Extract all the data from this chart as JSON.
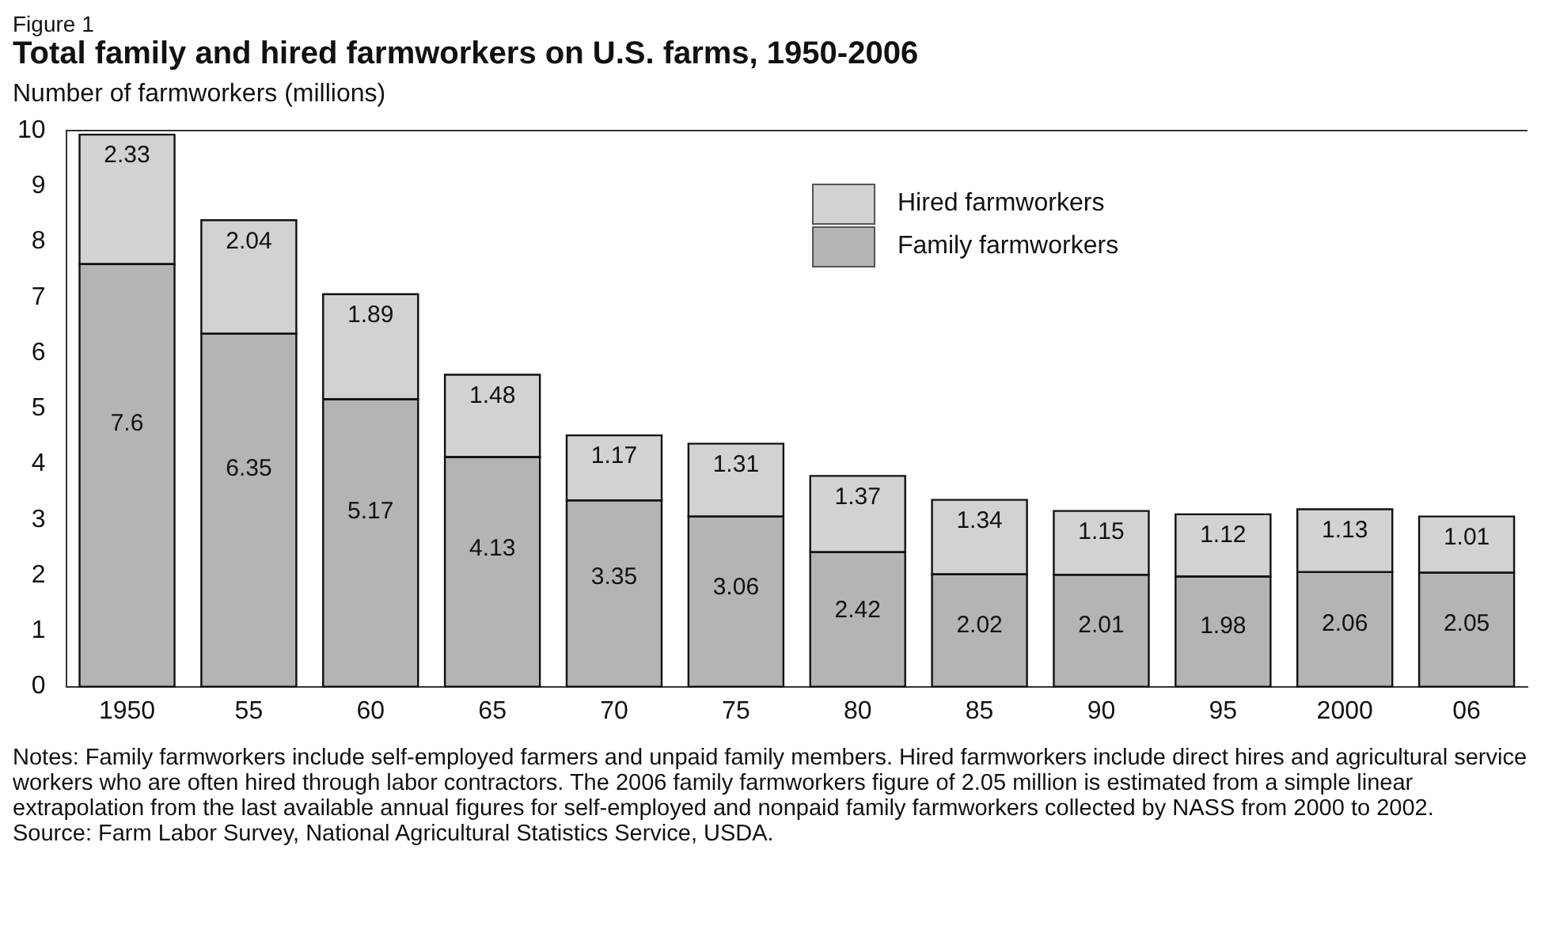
{
  "chart_data": {
    "type": "bar",
    "title": "Total family and hired farmworkers on U.S. farms, 1950-2006",
    "subtitle": "Figure 1",
    "ylabel": "Number of farmworkers (millions)",
    "categories": [
      "1950",
      "55",
      "60",
      "65",
      "70",
      "75",
      "80",
      "85",
      "90",
      "95",
      "2000",
      "06"
    ],
    "series": [
      {
        "name": "Family farmworkers",
        "color": "#b4b4b4",
        "values": [
          7.6,
          6.35,
          5.17,
          4.13,
          3.35,
          3.06,
          2.42,
          2.02,
          2.01,
          1.98,
          2.06,
          2.05
        ]
      },
      {
        "name": "Hired farmworkers",
        "color": "#d2d2d2",
        "values": [
          2.33,
          2.04,
          1.89,
          1.48,
          1.17,
          1.31,
          1.37,
          1.34,
          1.15,
          1.12,
          1.13,
          1.01
        ]
      }
    ],
    "stacked": true,
    "ylim": [
      0,
      10
    ],
    "yticks": [
      0,
      1,
      2,
      3,
      4,
      5,
      6,
      7,
      8,
      9,
      10
    ],
    "grid": false,
    "legend": "top right",
    "data_labels": true,
    "annotations": [
      "Notes: Family farmworkers include self-employed farmers and unpaid family members. Hired farmworkers include direct hires and agricultural service workers who are often hired through labor contractors. The 2006 family farmworkers figure of 2.05 million is estimated from a simple linear extrapolation from the last available annual figures for self-employed and nonpaid family farmworkers collected by NASS from 2000 to 2002.",
      "Source: Farm Labor Survey, National Agricultural Statistics Service, USDA."
    ]
  }
}
